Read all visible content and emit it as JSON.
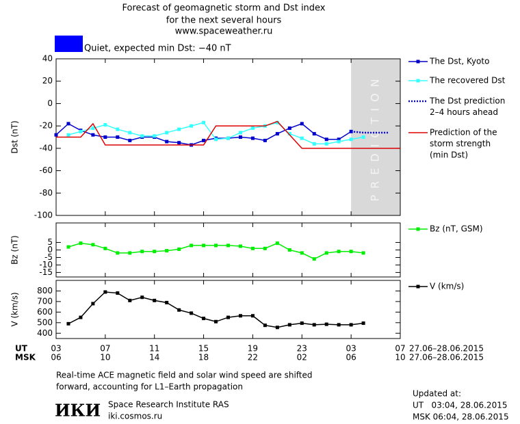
{
  "header": {
    "title": [
      "Forecast of geomagnetic storm and Dst index",
      "for the next several hours",
      "www.spaceweather.ru"
    ],
    "status_text": "Quiet, expected min Dst: −40 nT",
    "status_color": "#0000ff"
  },
  "x_axis": {
    "xlim": [
      0,
      28
    ],
    "ut_label": "UT",
    "msk_label": "MSK",
    "date_range": "27.06–28.06.2015",
    "xticks": [
      {
        "value": 0,
        "label": "03"
      },
      {
        "value": 4,
        "label": "07"
      },
      {
        "value": 8,
        "label": "11"
      },
      {
        "value": 12,
        "label": "15"
      },
      {
        "value": 16,
        "label": "19"
      },
      {
        "value": 20,
        "label": "23"
      },
      {
        "value": 24,
        "label": "03"
      },
      {
        "value": 28,
        "label": "07"
      }
    ],
    "msk_ticks": [
      {
        "value": 0,
        "label": "06"
      },
      {
        "value": 4,
        "label": "10"
      },
      {
        "value": 8,
        "label": "14"
      },
      {
        "value": 12,
        "label": "18"
      },
      {
        "value": 16,
        "label": "22"
      },
      {
        "value": 20,
        "label": "02"
      },
      {
        "value": 24,
        "label": "06"
      },
      {
        "value": 28,
        "label": "10"
      }
    ]
  },
  "chart_data": [
    {
      "type": "line",
      "y_label": "Dst (nT)",
      "ylim": [
        -100,
        40
      ],
      "yticks": [
        40,
        20,
        0,
        -20,
        -40,
        -60,
        -80,
        -100
      ],
      "prediction_band": {
        "label": "PREDICTION",
        "xrange": [
          24,
          28
        ],
        "color": "#d9d9d9"
      },
      "series": [
        {
          "name": [
            "The Dst, Kyoto"
          ],
          "color": "#0000cc",
          "marker": "square",
          "style": "solid",
          "x": [
            0,
            1,
            2,
            3,
            4,
            5,
            6,
            7,
            8,
            9,
            10,
            11,
            12,
            13,
            14,
            15,
            16,
            17,
            18,
            19,
            20,
            21,
            22,
            23,
            24
          ],
          "values": [
            -28,
            -18,
            -24,
            -28,
            -30,
            -30,
            -33,
            -30,
            -30,
            -34,
            -35,
            -37,
            -33,
            -31,
            -31,
            -30,
            -31,
            -33,
            -27,
            -22,
            -18,
            -27,
            -32,
            -32,
            -25
          ]
        },
        {
          "name": [
            "The recovered Dst"
          ],
          "color": "#33ffff",
          "marker": "square",
          "style": "solid",
          "x": [
            1,
            2,
            3,
            4,
            5,
            6,
            7,
            8,
            9,
            10,
            11,
            12,
            13,
            14,
            15,
            16,
            17,
            18,
            19,
            20,
            21,
            22,
            23,
            24,
            25
          ],
          "values": [
            -28,
            -25,
            -22,
            -19,
            -23,
            -26,
            -29,
            -29,
            -26,
            -23,
            -20,
            -17,
            -32,
            -31,
            -26,
            -22,
            -20,
            -17,
            -27,
            -31,
            -36,
            -36,
            -34,
            -32,
            -30
          ]
        },
        {
          "name": [
            "The Dst prediction",
            "2–4 hours ahead"
          ],
          "color": "#0000ff",
          "marker": "none",
          "style": "dotted",
          "x": [
            24,
            25,
            26,
            27
          ],
          "values": [
            -25,
            -26,
            -26,
            -26
          ]
        },
        {
          "name": [
            "Prediction of the",
            "storm strength",
            "(min Dst)"
          ],
          "color": "#dd0000",
          "marker": "none",
          "style": "solid",
          "x": [
            0,
            2,
            3,
            4,
            12,
            13,
            17,
            18,
            20,
            28
          ],
          "values": [
            -30,
            -30,
            -18,
            -37,
            -37,
            -20,
            -20,
            -16,
            -40,
            -40
          ]
        }
      ]
    },
    {
      "type": "line",
      "y_label": "Bz (nT)",
      "ylim": [
        -18,
        18
      ],
      "yticks": [
        5,
        0,
        -5,
        -10,
        -15
      ],
      "series": [
        {
          "name": [
            "Bz (nT, GSM)"
          ],
          "color": "#00ee00",
          "marker": "square",
          "style": "solid",
          "x": [
            1,
            2,
            3,
            4,
            5,
            6,
            7,
            8,
            9,
            10,
            11,
            12,
            13,
            14,
            15,
            16,
            17,
            18,
            19,
            20,
            21,
            22,
            23,
            24,
            25
          ],
          "values": [
            2,
            4.5,
            3.5,
            1,
            -2,
            -2,
            -1,
            -1,
            -0.5,
            0.5,
            3,
            3,
            3,
            3,
            2.5,
            1,
            1,
            4.5,
            0,
            -2,
            -6,
            -2,
            -1,
            -1,
            -2
          ]
        }
      ]
    },
    {
      "type": "line",
      "y_label": "V (km/s)",
      "ylim": [
        350,
        900
      ],
      "yticks": [
        800,
        700,
        600,
        500,
        400
      ],
      "series": [
        {
          "name": [
            "V (km/s)"
          ],
          "color": "#000000",
          "marker": "square",
          "style": "solid",
          "x": [
            1,
            2,
            3,
            4,
            5,
            6,
            7,
            8,
            9,
            10,
            11,
            12,
            13,
            14,
            15,
            16,
            17,
            18,
            19,
            20,
            21,
            22,
            23,
            24,
            25
          ],
          "values": [
            490,
            550,
            680,
            790,
            780,
            710,
            740,
            710,
            690,
            620,
            590,
            540,
            510,
            550,
            565,
            565,
            475,
            455,
            480,
            495,
            480,
            485,
            480,
            480,
            495
          ]
        }
      ]
    }
  ],
  "footer": {
    "note": [
      "Real-time ACE magnetic field and solar wind speed are shifted",
      "forward, accounting for L1–Earth propagation"
    ],
    "logo": "ИКИ",
    "institute": "Space Research Institute RAS",
    "url": "iki.cosmos.ru",
    "updated_title": "Updated at:",
    "updated_ut": "UT   03:04, 28.06.2015",
    "updated_msk": "MSK 06:04, 28.06.2015"
  }
}
